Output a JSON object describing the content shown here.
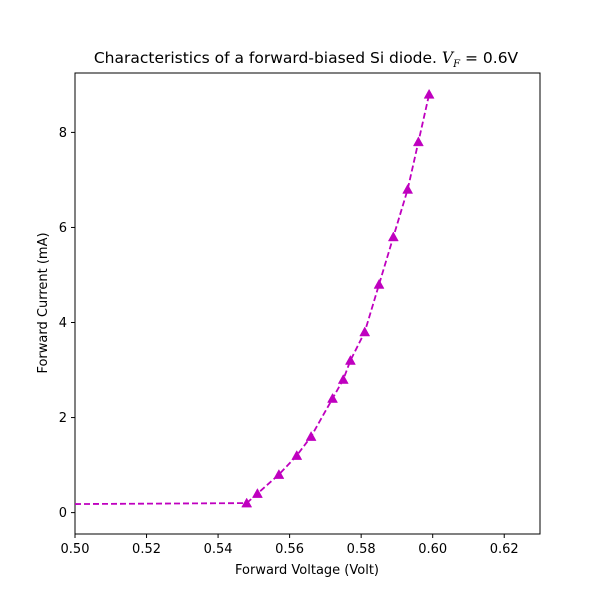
{
  "chart_data": {
    "type": "line",
    "title_parts": {
      "prefix": "Characteristics of a forward-biased Si diode. ",
      "var": "V",
      "sub": "F",
      "suffix": " = 0.6V"
    },
    "xlabel": "Forward Voltage (Volt)",
    "ylabel": "Forward Current (mA)",
    "xlim": [
      0.5,
      0.63
    ],
    "ylim": [
      -0.45,
      9.25
    ],
    "xticks": [
      "0.50",
      "0.52",
      "0.54",
      "0.56",
      "0.58",
      "0.60",
      "0.62"
    ],
    "yticks": [
      "0",
      "2",
      "4",
      "6",
      "8"
    ],
    "grid": false,
    "series": [
      {
        "color": "#bf00bf",
        "line_style": "dashed",
        "marker": "triangle-up",
        "x": [
          0.548,
          0.551,
          0.557,
          0.562,
          0.566,
          0.572,
          0.575,
          0.577,
          0.581,
          0.585,
          0.589,
          0.593,
          0.596,
          0.599
        ],
        "y": [
          0.2,
          0.4,
          0.8,
          1.2,
          1.6,
          2.4,
          2.8,
          3.2,
          3.8,
          4.8,
          5.8,
          6.8,
          7.8,
          8.8
        ],
        "lead_in": {
          "x": [
            0.5,
            0.548
          ],
          "y": [
            0.18,
            0.2
          ]
        }
      }
    ]
  }
}
